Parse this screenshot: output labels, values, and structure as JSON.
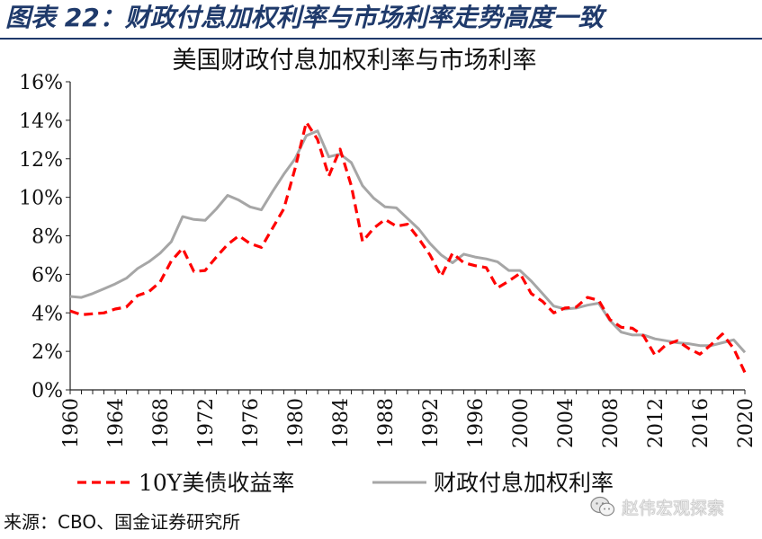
{
  "figure": {
    "title": "图表 22：财政付息加权利率与市场利率走势高度一致",
    "source": "来源：CBO、国金证券研究所",
    "watermark": "赵伟宏观探索",
    "title_color": "#1f3a6b"
  },
  "chart_data": {
    "type": "line",
    "title": "美国财政付息加权利率与市场利率",
    "xlabel": "",
    "ylabel": "",
    "xlim": [
      1960,
      2020
    ],
    "ylim": [
      0,
      16
    ],
    "x_ticks": [
      "1960",
      "1964",
      "1968",
      "1972",
      "1976",
      "1980",
      "1984",
      "1988",
      "1992",
      "1996",
      "2000",
      "2004",
      "2008",
      "2012",
      "2016",
      "2020"
    ],
    "y_ticks": [
      "16%",
      "14%",
      "12%",
      "10%",
      "8%",
      "6%",
      "4%",
      "2%",
      "0%"
    ],
    "grid": false,
    "legend": "bottom",
    "x": [
      1960,
      1961,
      1962,
      1963,
      1964,
      1965,
      1966,
      1967,
      1968,
      1969,
      1970,
      1971,
      1972,
      1973,
      1974,
      1975,
      1976,
      1977,
      1978,
      1979,
      1980,
      1981,
      1982,
      1983,
      1984,
      1985,
      1986,
      1987,
      1988,
      1989,
      1990,
      1991,
      1992,
      1993,
      1994,
      1995,
      1996,
      1997,
      1998,
      1999,
      2000,
      2001,
      2002,
      2003,
      2004,
      2005,
      2006,
      2007,
      2008,
      2009,
      2010,
      2011,
      2012,
      2013,
      2014,
      2015,
      2016,
      2017,
      2018,
      2019,
      2020
    ],
    "series": [
      {
        "name": "10Y美债收益率",
        "color": "#ff0000",
        "style": "dashed",
        "values": [
          4.1,
          3.9,
          3.95,
          4.0,
          4.2,
          4.3,
          4.9,
          5.1,
          5.6,
          6.7,
          7.35,
          6.15,
          6.2,
          6.9,
          7.55,
          8.0,
          7.6,
          7.4,
          8.4,
          9.4,
          11.5,
          13.9,
          13.0,
          11.1,
          12.5,
          10.6,
          7.7,
          8.4,
          8.85,
          8.5,
          8.6,
          7.85,
          7.0,
          5.9,
          7.1,
          6.6,
          6.45,
          6.35,
          5.3,
          5.65,
          6.05,
          5.0,
          4.6,
          4.0,
          4.25,
          4.3,
          4.8,
          4.65,
          3.65,
          3.25,
          3.2,
          2.8,
          1.8,
          2.35,
          2.55,
          2.15,
          1.85,
          2.35,
          2.9,
          2.15,
          0.9
        ]
      },
      {
        "name": "财政付息加权利率",
        "color": "#a6a6a6",
        "style": "solid",
        "values": [
          4.85,
          4.8,
          5.0,
          5.25,
          5.5,
          5.8,
          6.3,
          6.65,
          7.1,
          7.7,
          9.0,
          8.85,
          8.8,
          9.4,
          10.1,
          9.85,
          9.5,
          9.35,
          10.3,
          11.2,
          12.0,
          13.2,
          13.45,
          12.1,
          12.25,
          11.8,
          10.6,
          9.95,
          9.5,
          9.45,
          8.9,
          8.35,
          7.6,
          7.0,
          6.6,
          7.05,
          6.9,
          6.8,
          6.65,
          6.2,
          6.2,
          5.65,
          5.0,
          4.35,
          4.2,
          4.25,
          4.4,
          4.5,
          3.6,
          3.0,
          2.85,
          2.85,
          2.65,
          2.55,
          2.45,
          2.4,
          2.3,
          2.3,
          2.45,
          2.6,
          1.95
        ]
      }
    ]
  }
}
